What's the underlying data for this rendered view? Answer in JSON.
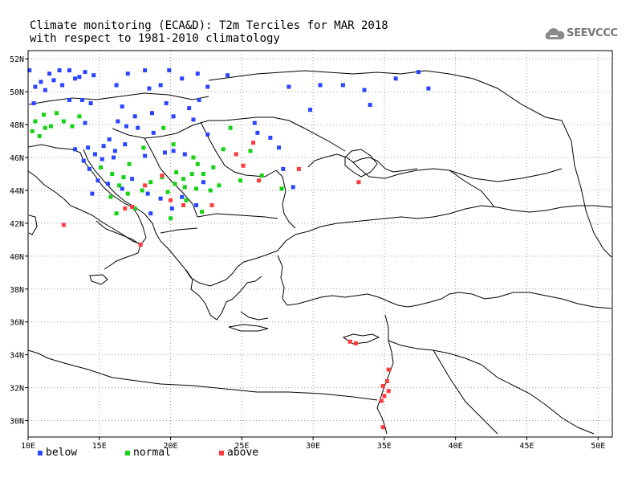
{
  "title": {
    "line1": "Climate monitoring (ECA&D): T2m Terciles for MAR 2018",
    "line2": "with respect to 1981-2010 climatology"
  },
  "logo": {
    "text": "SEEVCCC",
    "icon": "cloud-icon"
  },
  "colors": {
    "below": "#2a45ff",
    "normal": "#14d214",
    "above": "#ff3b3b",
    "land_outline": "#000000",
    "grid": "#9a9a9a"
  },
  "legend": [
    {
      "key": "below",
      "label": "below"
    },
    {
      "key": "normal",
      "label": "normal"
    },
    {
      "key": "above",
      "label": "above"
    }
  ],
  "axes": {
    "lon_ticks": [
      "10E",
      "15E",
      "20E",
      "25E",
      "30E",
      "35E",
      "40E",
      "45E",
      "50E"
    ],
    "lat_ticks": [
      "30N",
      "32N",
      "34N",
      "36N",
      "38N",
      "40N",
      "42N",
      "44N",
      "46N",
      "48N",
      "50N",
      "52N"
    ],
    "lon_range": [
      10,
      51
    ],
    "lat_range": [
      29,
      52.5
    ],
    "grid": true
  },
  "stations": {
    "below": [
      [
        10.1,
        51.3
      ],
      [
        10.5,
        50.3
      ],
      [
        10.4,
        49.3
      ],
      [
        10.9,
        50.6
      ],
      [
        11.2,
        50.1
      ],
      [
        11.5,
        51.1
      ],
      [
        11.8,
        50.7
      ],
      [
        12.2,
        51.3
      ],
      [
        12.4,
        50.4
      ],
      [
        12.9,
        51.3
      ],
      [
        13.3,
        50.8
      ],
      [
        13.6,
        50.9
      ],
      [
        14.0,
        51.2
      ],
      [
        14.6,
        51.0
      ],
      [
        12.9,
        49.5
      ],
      [
        13.8,
        49.5
      ],
      [
        14.4,
        49.3
      ],
      [
        16.6,
        49.1
      ],
      [
        16.2,
        50.4
      ],
      [
        17.0,
        51.1
      ],
      [
        18.2,
        51.3
      ],
      [
        18.5,
        50.2
      ],
      [
        19.3,
        50.4
      ],
      [
        19.9,
        51.3
      ],
      [
        20.8,
        50.8
      ],
      [
        21.9,
        51.1
      ],
      [
        22.6,
        50.3
      ],
      [
        22.0,
        49.5
      ],
      [
        21.3,
        49.0
      ],
      [
        19.7,
        49.3
      ],
      [
        18.7,
        48.7
      ],
      [
        17.5,
        48.5
      ],
      [
        16.3,
        48.2
      ],
      [
        14.0,
        48.1
      ],
      [
        15.7,
        47.1
      ],
      [
        14.2,
        46.6
      ],
      [
        14.7,
        46.2
      ],
      [
        15.3,
        46.7
      ],
      [
        16.1,
        46.4
      ],
      [
        16.8,
        46.8
      ],
      [
        18.2,
        46.1
      ],
      [
        19.6,
        46.3
      ],
      [
        20.2,
        46.4
      ],
      [
        21.0,
        46.2
      ],
      [
        22.6,
        47.4
      ],
      [
        21.6,
        48.3
      ],
      [
        20.2,
        48.5
      ],
      [
        18.8,
        47.5
      ],
      [
        17.7,
        47.8
      ],
      [
        16.9,
        47.9
      ],
      [
        16.0,
        46.0
      ],
      [
        15.2,
        45.9
      ],
      [
        14.3,
        45.3
      ],
      [
        13.9,
        45.8
      ],
      [
        14.9,
        44.6
      ],
      [
        14.5,
        43.8
      ],
      [
        15.6,
        44.4
      ],
      [
        16.6,
        44.1
      ],
      [
        17.3,
        44.7
      ],
      [
        18.4,
        43.8
      ],
      [
        19.3,
        43.5
      ],
      [
        18.6,
        42.6
      ],
      [
        20.1,
        42.9
      ],
      [
        20.8,
        43.6
      ],
      [
        21.8,
        43.1
      ],
      [
        22.3,
        44.5
      ],
      [
        26.1,
        47.5
      ],
      [
        27.0,
        47.2
      ],
      [
        27.6,
        46.6
      ],
      [
        27.9,
        45.3
      ],
      [
        28.6,
        44.2
      ],
      [
        29.8,
        48.9
      ],
      [
        30.5,
        50.4
      ],
      [
        32.1,
        50.4
      ],
      [
        33.6,
        50.1
      ],
      [
        34.0,
        49.2
      ],
      [
        35.8,
        50.8
      ],
      [
        37.4,
        51.2
      ],
      [
        38.1,
        50.2
      ],
      [
        28.3,
        50.3
      ],
      [
        24.0,
        51.0
      ],
      [
        25.9,
        48.1
      ],
      [
        13.3,
        46.5
      ]
    ],
    "normal": [
      [
        10.3,
        47.6
      ],
      [
        10.8,
        47.3
      ],
      [
        10.5,
        48.2
      ],
      [
        11.1,
        48.6
      ],
      [
        11.6,
        47.9
      ],
      [
        12.0,
        48.7
      ],
      [
        12.5,
        48.2
      ],
      [
        13.1,
        47.9
      ],
      [
        13.6,
        48.5
      ],
      [
        11.2,
        47.8
      ],
      [
        15.1,
        45.4
      ],
      [
        15.9,
        45.0
      ],
      [
        16.4,
        44.3
      ],
      [
        17.0,
        43.8
      ],
      [
        17.5,
        42.9
      ],
      [
        16.2,
        42.6
      ],
      [
        18.0,
        44.0
      ],
      [
        18.6,
        44.5
      ],
      [
        19.4,
        44.8
      ],
      [
        19.8,
        43.9
      ],
      [
        20.3,
        44.4
      ],
      [
        20.9,
        44.7
      ],
      [
        21.5,
        45.0
      ],
      [
        21.1,
        43.4
      ],
      [
        21.8,
        44.1
      ],
      [
        22.2,
        42.7
      ],
      [
        20.0,
        42.3
      ],
      [
        20.4,
        45.1
      ],
      [
        21.0,
        44.2
      ],
      [
        22.3,
        45.0
      ],
      [
        23.0,
        45.4
      ],
      [
        23.7,
        46.5
      ],
      [
        24.2,
        47.8
      ],
      [
        24.9,
        44.6
      ],
      [
        25.6,
        46.4
      ],
      [
        26.4,
        44.9
      ],
      [
        27.8,
        44.1
      ],
      [
        22.8,
        44.0
      ],
      [
        23.4,
        44.3
      ],
      [
        21.6,
        46.0
      ],
      [
        21.9,
        45.6
      ],
      [
        20.2,
        46.8
      ],
      [
        19.5,
        47.8
      ],
      [
        18.1,
        46.6
      ],
      [
        17.1,
        45.6
      ],
      [
        16.7,
        44.8
      ],
      [
        15.8,
        43.6
      ]
    ],
    "above": [
      [
        12.5,
        41.9
      ],
      [
        17.9,
        40.7
      ],
      [
        16.8,
        42.9
      ],
      [
        17.3,
        43.0
      ],
      [
        18.2,
        44.3
      ],
      [
        19.4,
        44.9
      ],
      [
        20.0,
        43.4
      ],
      [
        20.9,
        43.1
      ],
      [
        22.9,
        43.1
      ],
      [
        24.6,
        46.2
      ],
      [
        25.1,
        45.5
      ],
      [
        25.8,
        46.9
      ],
      [
        26.2,
        44.6
      ],
      [
        29.0,
        45.3
      ],
      [
        33.2,
        44.5
      ],
      [
        32.6,
        34.8
      ],
      [
        33.0,
        34.7
      ],
      [
        35.3,
        33.1
      ],
      [
        35.2,
        32.4
      ],
      [
        34.9,
        32.1
      ],
      [
        35.3,
        31.8
      ],
      [
        34.8,
        31.2
      ],
      [
        35.0,
        31.5
      ],
      [
        34.9,
        29.6
      ]
    ]
  }
}
